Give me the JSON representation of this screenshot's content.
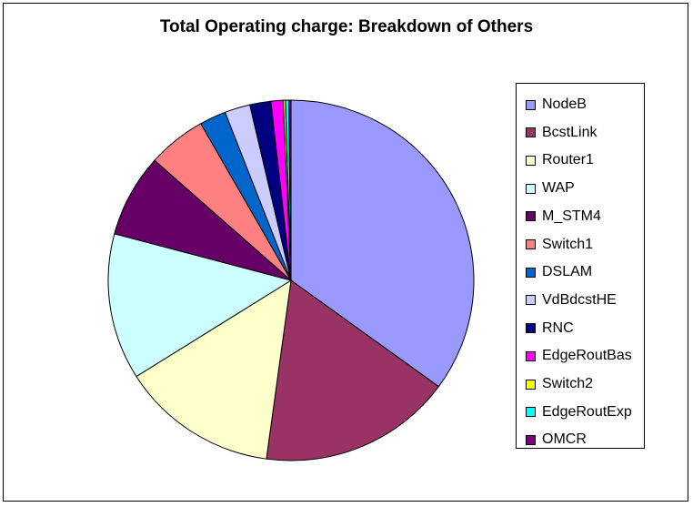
{
  "chart_data": {
    "type": "pie",
    "title": "Total Operating charge: Breakdown of Others",
    "legend_position": "right",
    "categories": [
      "NodeB",
      "BcstLink",
      "Router1",
      "WAP",
      "M_STM4",
      "Switch1",
      "DSLAM",
      "VdBdcstHE",
      "RNC",
      "EdgeRoutBas",
      "Switch2",
      "EdgeRoutExp",
      "OMCR"
    ],
    "values": [
      35.8,
      17.5,
      14.2,
      13.4,
      7.6,
      5.3,
      2.4,
      2.3,
      1.9,
      1.1,
      0.2,
      0.3,
      0.2
    ],
    "colors": [
      "#9999FF",
      "#993366",
      "#FFFFCC",
      "#CCFFFF",
      "#660066",
      "#FF8080",
      "#0066CC",
      "#CCCCFF",
      "#000080",
      "#FF00FF",
      "#FFFF00",
      "#00FFFF",
      "#800080"
    ]
  }
}
